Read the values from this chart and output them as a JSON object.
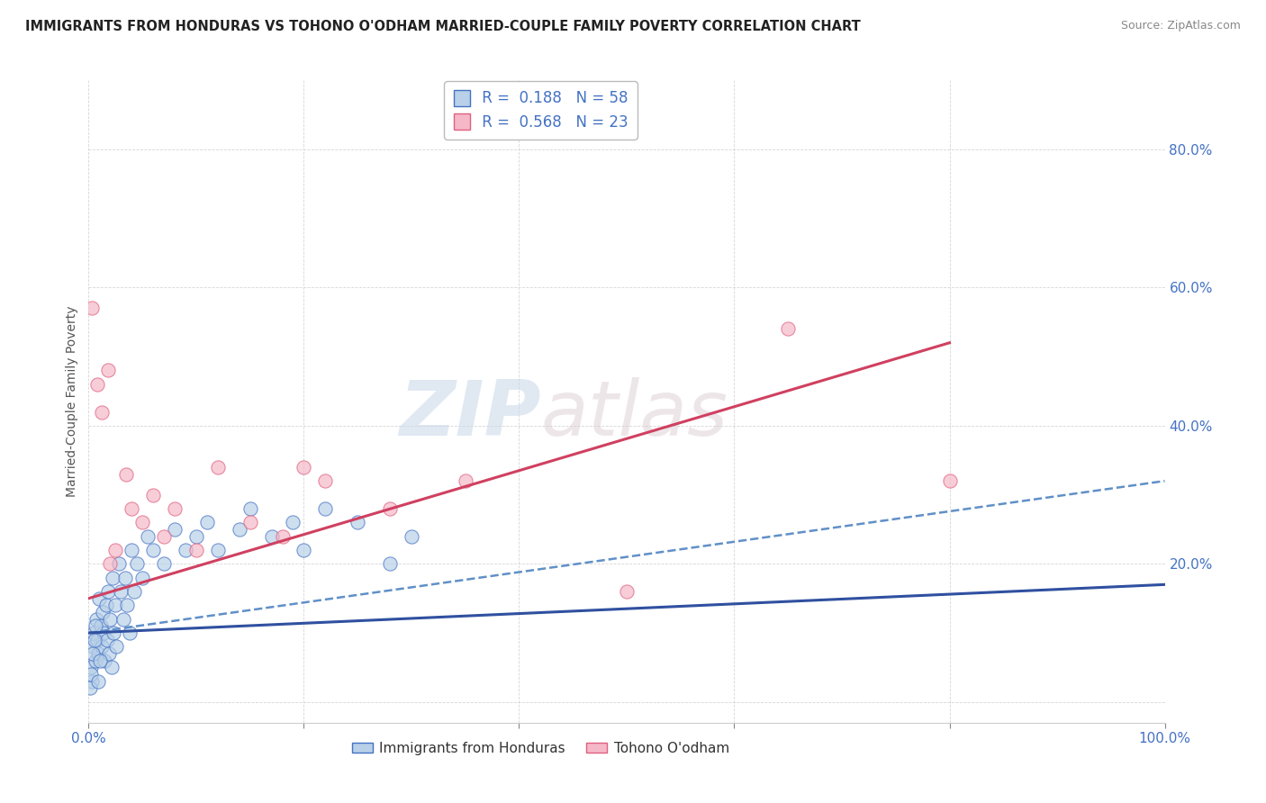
{
  "title": "IMMIGRANTS FROM HONDURAS VS TOHONO O'ODHAM MARRIED-COUPLE FAMILY POVERTY CORRELATION CHART",
  "source": "Source: ZipAtlas.com",
  "ylabel": "Married-Couple Family Poverty",
  "xlim": [
    0.0,
    100.0
  ],
  "ylim": [
    -3.0,
    90.0
  ],
  "blue_R": 0.188,
  "blue_N": 58,
  "pink_R": 0.568,
  "pink_N": 23,
  "blue_fill_color": "#b8d0e8",
  "pink_fill_color": "#f5b8c8",
  "blue_edge_color": "#4472c4",
  "pink_edge_color": "#e06080",
  "blue_line_color": "#3050a0",
  "pink_line_color": "#d04060",
  "dashed_line_color": "#6090c8",
  "legend_label_blue": "Immigrants from Honduras",
  "legend_label_pink": "Tohono O'odham",
  "watermark_zip": "ZIP",
  "watermark_atlas": "atlas",
  "background_color": "#ffffff",
  "blue_scatter_x": [
    0.2,
    0.3,
    0.4,
    0.5,
    0.6,
    0.7,
    0.8,
    0.9,
    1.0,
    1.1,
    1.2,
    1.3,
    1.4,
    1.5,
    1.6,
    1.7,
    1.8,
    1.9,
    2.0,
    2.1,
    2.2,
    2.3,
    2.5,
    2.6,
    2.8,
    3.0,
    3.2,
    3.4,
    3.6,
    3.8,
    4.0,
    4.2,
    4.5,
    5.0,
    5.5,
    6.0,
    7.0,
    8.0,
    9.0,
    10.0,
    11.0,
    12.0,
    14.0,
    15.0,
    17.0,
    19.0,
    20.0,
    22.0,
    25.0,
    28.0,
    30.0,
    0.15,
    0.25,
    0.35,
    0.55,
    0.65,
    0.85,
    1.05
  ],
  "blue_scatter_y": [
    5.0,
    3.0,
    8.0,
    10.0,
    6.0,
    12.0,
    9.0,
    7.0,
    15.0,
    11.0,
    8.0,
    13.0,
    10.0,
    6.0,
    14.0,
    9.0,
    16.0,
    7.0,
    12.0,
    5.0,
    18.0,
    10.0,
    14.0,
    8.0,
    20.0,
    16.0,
    12.0,
    18.0,
    14.0,
    10.0,
    22.0,
    16.0,
    20.0,
    18.0,
    24.0,
    22.0,
    20.0,
    25.0,
    22.0,
    24.0,
    26.0,
    22.0,
    25.0,
    28.0,
    24.0,
    26.0,
    22.0,
    28.0,
    26.0,
    20.0,
    24.0,
    2.0,
    4.0,
    7.0,
    9.0,
    11.0,
    3.0,
    6.0
  ],
  "pink_scatter_x": [
    0.3,
    0.8,
    1.2,
    1.8,
    2.5,
    3.5,
    5.0,
    6.0,
    8.0,
    10.0,
    12.0,
    15.0,
    18.0,
    22.0,
    28.0,
    35.0,
    50.0,
    65.0,
    80.0,
    2.0,
    4.0,
    7.0,
    20.0
  ],
  "pink_scatter_y": [
    57.0,
    46.0,
    42.0,
    48.0,
    22.0,
    33.0,
    26.0,
    30.0,
    28.0,
    22.0,
    34.0,
    26.0,
    24.0,
    32.0,
    28.0,
    32.0,
    16.0,
    54.0,
    32.0,
    20.0,
    28.0,
    24.0,
    34.0
  ],
  "blue_trend_x0": 0.0,
  "blue_trend_x1": 100.0,
  "blue_trend_y0": 10.0,
  "blue_trend_y1": 17.0,
  "pink_trend_x0": 0.0,
  "pink_trend_x1": 80.0,
  "pink_trend_y0": 15.0,
  "pink_trend_y1": 52.0,
  "dashed_trend_x0": 0.0,
  "dashed_trend_x1": 100.0,
  "dashed_trend_y0": 10.0,
  "dashed_trend_y1": 32.0
}
